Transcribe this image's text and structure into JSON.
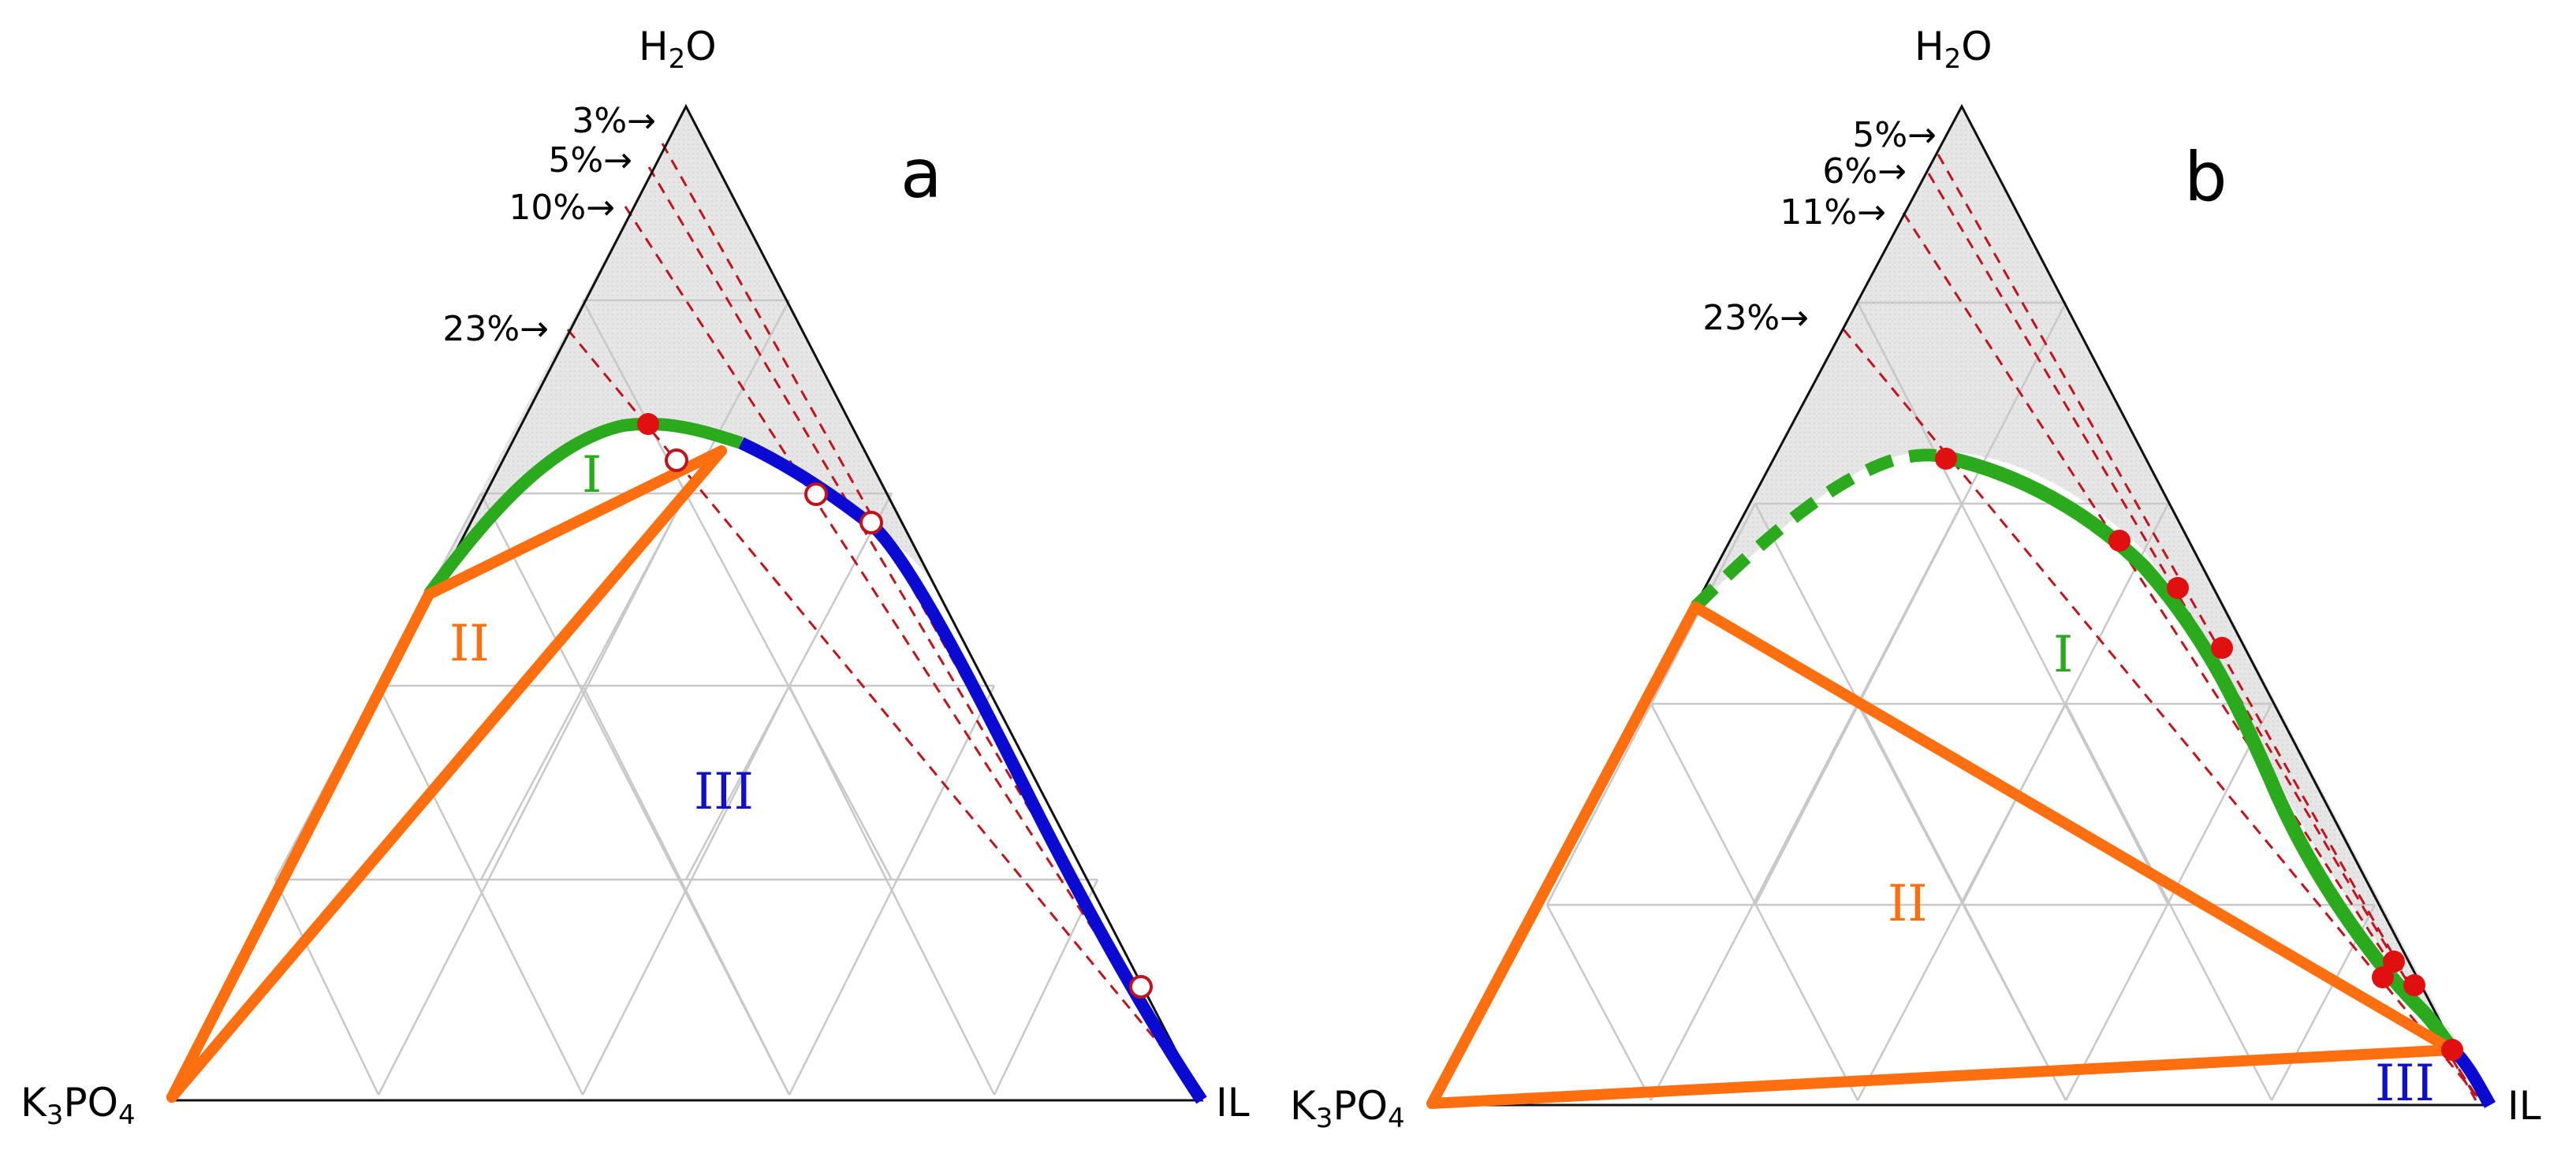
{
  "panels": [
    {
      "letter": "a",
      "vertex_top": "H2O",
      "vertex_left": "K3PO4",
      "vertex_right": "IL",
      "percent_marks": [
        "3%→",
        "5%→",
        "10%→",
        "23%→"
      ],
      "regions": [
        {
          "label": "I",
          "color": "#2aaa1c"
        },
        {
          "label": "II",
          "color": "#ff6f0f"
        },
        {
          "label": "III",
          "color": "#1010c8"
        }
      ]
    },
    {
      "letter": "b",
      "vertex_top": "H2O",
      "vertex_left": "K3PO4",
      "vertex_right": "IL",
      "percent_marks": [
        "5%→",
        "6%→",
        "11%→",
        "23%→"
      ],
      "regions": [
        {
          "label": "I",
          "color": "#2aaa1c"
        },
        {
          "label": "II",
          "color": "#ff6f0f"
        },
        {
          "label": "III",
          "color": "#1010c8"
        }
      ]
    }
  ],
  "colors": {
    "green_curve": "#2aaa1c",
    "blue_curve": "#0a0ad2",
    "orange_tie": "#ff6f0f",
    "red_point": "#e01010",
    "dashed_line": "#c0141c",
    "shade": "#e6e6e6",
    "grid": "#c8c8c8"
  }
}
